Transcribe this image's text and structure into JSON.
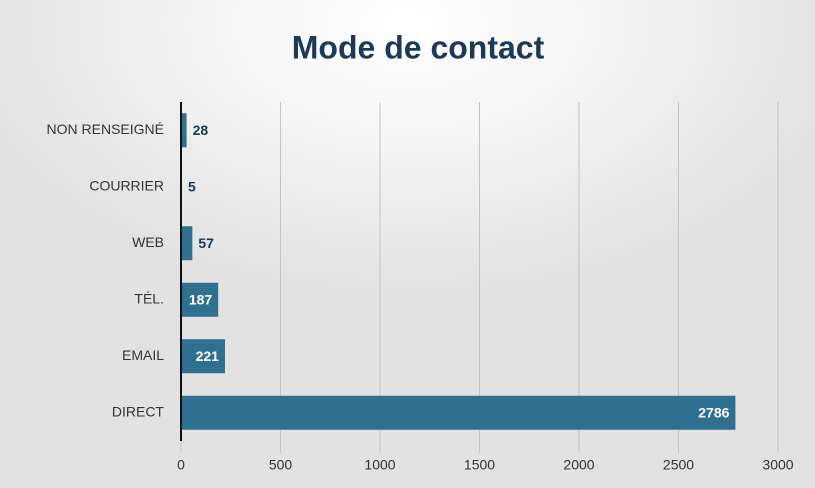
{
  "chart_data": {
    "type": "hbar",
    "title": "Mode de contact",
    "categories": [
      "NON RENSEIGNÉ",
      "COURRIER",
      "WEB",
      "TÉL.",
      "EMAIL",
      "DIRECT"
    ],
    "values": [
      28,
      5,
      57,
      187,
      221,
      2786
    ],
    "color": "#2f6f8f",
    "xlim": [
      0,
      3000
    ],
    "xticks": [
      0,
      500,
      1000,
      1500,
      2000,
      2500,
      3000
    ],
    "grid": true
  }
}
